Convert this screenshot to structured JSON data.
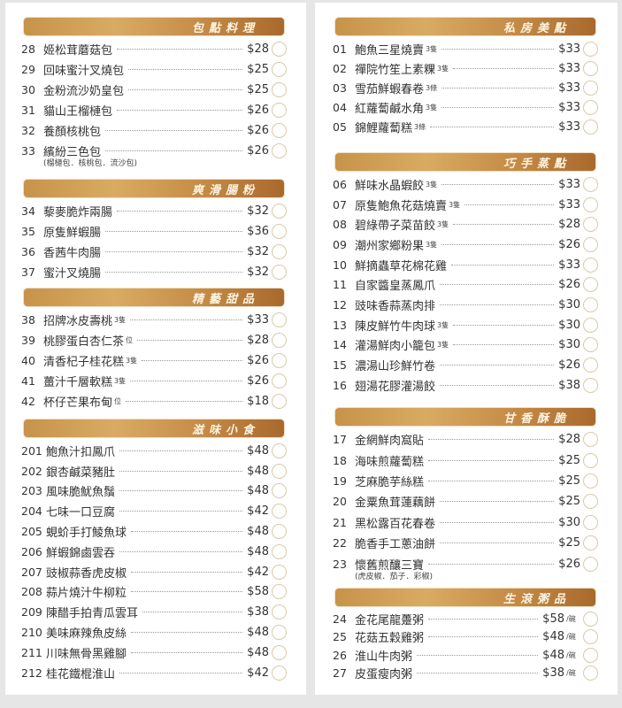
{
  "sections": [
    {
      "title": "包點料理",
      "items": [
        {
          "no": "28",
          "name": "姬松茸蘑菇包",
          "qty": "",
          "price": "$28",
          "unit": ""
        },
        {
          "no": "29",
          "name": "回味蜜汁叉燒包",
          "qty": "",
          "price": "$25",
          "unit": ""
        },
        {
          "no": "30",
          "name": "金粉流沙奶皇包",
          "qty": "",
          "price": "$25",
          "unit": ""
        },
        {
          "no": "31",
          "name": "貓山王榴槤包",
          "qty": "",
          "price": "$26",
          "unit": ""
        },
        {
          "no": "32",
          "name": "養顏核桃包",
          "qty": "",
          "price": "$26",
          "unit": ""
        },
        {
          "no": "33",
          "name": "繽紛三色包",
          "qty": "",
          "price": "$26",
          "unit": ""
        }
      ],
      "note": "(榴槤包．核桃包．流沙包)"
    },
    {
      "title": "爽滑腸粉",
      "items": [
        {
          "no": "34",
          "name": "藜麥脆炸兩腸",
          "qty": "",
          "price": "$32",
          "unit": ""
        },
        {
          "no": "35",
          "name": "原隻鮮蝦腸",
          "qty": "",
          "price": "$36",
          "unit": ""
        },
        {
          "no": "36",
          "name": "香茜牛肉腸",
          "qty": "",
          "price": "$32",
          "unit": ""
        },
        {
          "no": "37",
          "name": "蜜汁叉燒腸",
          "qty": "",
          "price": "$32",
          "unit": ""
        }
      ]
    },
    {
      "title": "精藝甜品",
      "items": [
        {
          "no": "38",
          "name": "招牌冰皮壽桃",
          "qty": "3隻",
          "price": "$33",
          "unit": ""
        },
        {
          "no": "39",
          "name": "桃膠蛋白杏仁茶",
          "qty": "位",
          "price": "$28",
          "unit": ""
        },
        {
          "no": "40",
          "name": "清香杞子桂花糕",
          "qty": "3隻",
          "price": "$26",
          "unit": ""
        },
        {
          "no": "41",
          "name": "薑汁千層軟糕",
          "qty": "3隻",
          "price": "$26",
          "unit": ""
        },
        {
          "no": "42",
          "name": "杯仔芒果布甸",
          "qty": "位",
          "price": "$18",
          "unit": ""
        }
      ]
    },
    {
      "title": "滋味小食",
      "items": [
        {
          "no": "201",
          "name": "鮑魚汁扣鳳爪",
          "qty": "",
          "price": "$48",
          "unit": ""
        },
        {
          "no": "202",
          "name": "銀杏鹹菜豬肚",
          "qty": "",
          "price": "$48",
          "unit": ""
        },
        {
          "no": "203",
          "name": "風味脆魷魚鬚",
          "qty": "",
          "price": "$48",
          "unit": ""
        },
        {
          "no": "204",
          "name": "七味一口豆腐",
          "qty": "",
          "price": "$42",
          "unit": ""
        },
        {
          "no": "205",
          "name": "蜆蚧手打鯪魚球",
          "qty": "",
          "price": "$48",
          "unit": ""
        },
        {
          "no": "206",
          "name": "鮮蝦錦鹵雲吞",
          "qty": "",
          "price": "$48",
          "unit": ""
        },
        {
          "no": "207",
          "name": "豉椒蒜香虎皮椒",
          "qty": "",
          "price": "$42",
          "unit": ""
        },
        {
          "no": "208",
          "name": "蒜片燒汁牛柳粒",
          "qty": "",
          "price": "$58",
          "unit": ""
        },
        {
          "no": "209",
          "name": "陳醋手拍青瓜雲耳",
          "qty": "",
          "price": "$38",
          "unit": ""
        },
        {
          "no": "210",
          "name": "美味麻辣魚皮絲",
          "qty": "",
          "price": "$48",
          "unit": ""
        },
        {
          "no": "211",
          "name": "川味無骨黑雞腳",
          "qty": "",
          "price": "$48",
          "unit": ""
        },
        {
          "no": "212",
          "name": "桂花鐵棍淮山",
          "qty": "",
          "price": "$42",
          "unit": ""
        }
      ]
    },
    {
      "title": "私房美點",
      "items": [
        {
          "no": "01",
          "name": "鮑魚三星燒賣",
          "qty": "3隻",
          "price": "$33",
          "unit": ""
        },
        {
          "no": "02",
          "name": "禪院竹笙上素粿",
          "qty": "3隻",
          "price": "$33",
          "unit": ""
        },
        {
          "no": "03",
          "name": "雪茄鮮蝦春卷",
          "qty": "3條",
          "price": "$33",
          "unit": ""
        },
        {
          "no": "04",
          "name": "紅蘿蔔鹹水角",
          "qty": "3隻",
          "price": "$33",
          "unit": ""
        },
        {
          "no": "05",
          "name": "錦鯉蘿蔔糕",
          "qty": "3條",
          "price": "$33",
          "unit": ""
        }
      ]
    },
    {
      "title": "巧手蒸點",
      "items": [
        {
          "no": "06",
          "name": "鮮味水晶蝦餃",
          "qty": "3隻",
          "price": "$33",
          "unit": ""
        },
        {
          "no": "07",
          "name": "原隻鮑魚花菇燒賣",
          "qty": "3隻",
          "price": "$33",
          "unit": ""
        },
        {
          "no": "08",
          "name": "碧綠帶子菜苗餃",
          "qty": "3隻",
          "price": "$28",
          "unit": ""
        },
        {
          "no": "09",
          "name": "潮州家鄉粉果",
          "qty": "3隻",
          "price": "$26",
          "unit": ""
        },
        {
          "no": "10",
          "name": "鮮摘蟲草花棉花雞",
          "qty": "",
          "price": "$33",
          "unit": ""
        },
        {
          "no": "11",
          "name": "自家醬皇蒸鳳爪",
          "qty": "",
          "price": "$26",
          "unit": ""
        },
        {
          "no": "12",
          "name": "豉味香蒜蒸肉排",
          "qty": "",
          "price": "$30",
          "unit": ""
        },
        {
          "no": "13",
          "name": "陳皮鮮竹牛肉球",
          "qty": "3隻",
          "price": "$30",
          "unit": ""
        },
        {
          "no": "14",
          "name": "灌湯鮮肉小籠包",
          "qty": "3隻",
          "price": "$30",
          "unit": ""
        },
        {
          "no": "15",
          "name": "濃湯山珍鮮竹卷",
          "qty": "",
          "price": "$26",
          "unit": ""
        },
        {
          "no": "16",
          "name": "翅湯花膠灌湯餃",
          "qty": "",
          "price": "$38",
          "unit": ""
        }
      ]
    },
    {
      "title": "甘香酥脆",
      "items": [
        {
          "no": "17",
          "name": "金網鮮肉窩貼",
          "qty": "",
          "price": "$28",
          "unit": ""
        },
        {
          "no": "18",
          "name": "海味煎蘿蔔糕",
          "qty": "",
          "price": "$25",
          "unit": ""
        },
        {
          "no": "19",
          "name": "芝麻脆芋絲糕",
          "qty": "",
          "price": "$25",
          "unit": ""
        },
        {
          "no": "20",
          "name": "金粟魚茸蓮藕餅",
          "qty": "",
          "price": "$25",
          "unit": ""
        },
        {
          "no": "21",
          "name": "黑松露百花春卷",
          "qty": "",
          "price": "$30",
          "unit": ""
        },
        {
          "no": "22",
          "name": "脆香手工蔥油餅",
          "qty": "",
          "price": "$25",
          "unit": ""
        },
        {
          "no": "23",
          "name": "懷舊煎釀三寶",
          "qty": "",
          "price": "$26",
          "unit": ""
        }
      ],
      "note": "(虎皮椒．茄子．彩椒)"
    },
    {
      "title": "生滾粥品",
      "items": [
        {
          "no": "24",
          "name": "金花尾龍躉粥",
          "qty": "",
          "price": "$58",
          "unit": "/碗"
        },
        {
          "no": "25",
          "name": "花菇五穀雞粥",
          "qty": "",
          "price": "$48",
          "unit": "/碗"
        },
        {
          "no": "26",
          "name": "淮山牛肉粥",
          "qty": "",
          "price": "$48",
          "unit": "/碗"
        },
        {
          "no": "27",
          "name": "皮蛋瘦肉粥",
          "qty": "",
          "price": "$38",
          "unit": "/碗"
        }
      ]
    }
  ],
  "colors": {
    "header_gold": "#c7934a",
    "header_brown": "#a9692d",
    "header_text": "#fbf3e2",
    "circle": "#d6cba8"
  }
}
